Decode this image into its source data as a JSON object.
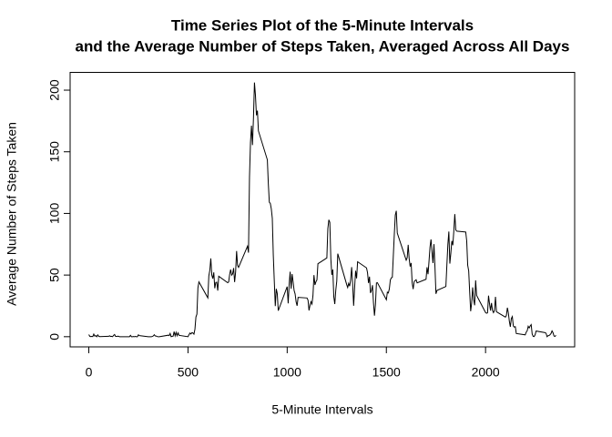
{
  "chart_data": {
    "type": "line",
    "title": [
      "Time Series Plot of the 5-Minute Intervals",
      "and the Average Number of Steps Taken, Averaged Across All Days"
    ],
    "xlabel": "5-Minute Intervals",
    "ylabel": "Average Number of Steps Taken",
    "color": "#000000",
    "xlim": [
      -94.2,
      2449.2
    ],
    "xticks": [
      0,
      500,
      1000,
      1500,
      2000
    ],
    "ylim": [
      -8.25,
      214.42
    ],
    "yticks": [
      0,
      50,
      100,
      150,
      200
    ],
    "x": [
      0,
      5,
      10,
      15,
      20,
      25,
      30,
      35,
      40,
      45,
      50,
      55,
      100,
      105,
      110,
      115,
      120,
      125,
      130,
      135,
      140,
      145,
      150,
      155,
      200,
      205,
      210,
      215,
      220,
      225,
      230,
      235,
      240,
      245,
      250,
      255,
      300,
      305,
      310,
      315,
      320,
      325,
      330,
      335,
      340,
      345,
      350,
      355,
      400,
      405,
      410,
      415,
      420,
      425,
      430,
      435,
      440,
      445,
      450,
      455,
      500,
      505,
      510,
      515,
      520,
      525,
      530,
      535,
      540,
      545,
      550,
      555,
      600,
      605,
      610,
      615,
      620,
      625,
      630,
      635,
      640,
      645,
      650,
      655,
      700,
      705,
      710,
      715,
      720,
      725,
      730,
      735,
      740,
      745,
      750,
      755,
      800,
      805,
      810,
      815,
      820,
      825,
      830,
      835,
      840,
      845,
      850,
      855,
      900,
      905,
      910,
      915,
      920,
      925,
      930,
      935,
      940,
      945,
      950,
      955,
      1000,
      1005,
      1010,
      1015,
      1020,
      1025,
      1030,
      1035,
      1040,
      1045,
      1050,
      1055,
      1100,
      1105,
      1110,
      1115,
      1120,
      1125,
      1130,
      1135,
      1140,
      1145,
      1150,
      1155,
      1200,
      1205,
      1210,
      1215,
      1220,
      1225,
      1230,
      1235,
      1240,
      1245,
      1250,
      1255,
      1300,
      1305,
      1310,
      1315,
      1320,
      1325,
      1330,
      1335,
      1340,
      1345,
      1350,
      1355,
      1400,
      1405,
      1410,
      1415,
      1420,
      1425,
      1430,
      1435,
      1440,
      1445,
      1450,
      1455,
      1500,
      1505,
      1510,
      1515,
      1520,
      1525,
      1530,
      1535,
      1540,
      1545,
      1550,
      1555,
      1600,
      1605,
      1610,
      1615,
      1620,
      1625,
      1630,
      1635,
      1640,
      1645,
      1650,
      1655,
      1700,
      1705,
      1710,
      1715,
      1720,
      1725,
      1730,
      1735,
      1740,
      1745,
      1750,
      1755,
      1800,
      1805,
      1810,
      1815,
      1820,
      1825,
      1830,
      1835,
      1840,
      1845,
      1850,
      1855,
      1900,
      1905,
      1910,
      1915,
      1920,
      1925,
      1930,
      1935,
      1940,
      1945,
      1950,
      1955,
      2000,
      2005,
      2010,
      2015,
      2020,
      2025,
      2030,
      2035,
      2040,
      2045,
      2050,
      2055,
      2100,
      2105,
      2110,
      2115,
      2120,
      2125,
      2130,
      2135,
      2140,
      2145,
      2150,
      2155,
      2200,
      2205,
      2210,
      2215,
      2220,
      2225,
      2230,
      2235,
      2240,
      2245,
      2250,
      2255,
      2300,
      2305,
      2310,
      2315,
      2320,
      2325,
      2330,
      2335,
      2340,
      2345,
      2350,
      2355
    ],
    "values": [
      1.7,
      0.3,
      0.1,
      0.2,
      0.1,
      2.1,
      0.5,
      0.9,
      0,
      1.5,
      0.3,
      0.1,
      0.3,
      0.7,
      0.2,
      0.3,
      0,
      1.1,
      1.8,
      0.2,
      0.2,
      0.4,
      0.3,
      0,
      0,
      0,
      1.1,
      0,
      0,
      0.1,
      0,
      0.2,
      0,
      0,
      1.5,
      0.9,
      0,
      0,
      0,
      0,
      0.2,
      0.6,
      1.6,
      0.6,
      0.5,
      0.1,
      0,
      0,
      1.2,
      0.9,
      2.6,
      0,
      0.3,
      0.4,
      4.1,
      0.7,
      3.5,
      0.8,
      3.1,
      1.1,
      0,
      1.6,
      3,
      2.2,
      3.3,
      3,
      2.1,
      6.1,
      16,
      18.3,
      39.5,
      44.5,
      31.5,
      49.3,
      53.8,
      63.5,
      50,
      47.1,
      52.2,
      39.3,
      44,
      44.2,
      37.4,
      49,
      43.8,
      44.4,
      50.5,
      54.5,
      49.9,
      51,
      55.7,
      44.3,
      52.3,
      69.5,
      57.8,
      56.2,
      73.4,
      68.2,
      129.4,
      157.5,
      171.2,
      155.4,
      177.3,
      206.2,
      195.9,
      179.6,
      183.4,
      167,
      143.5,
      124,
      109.1,
      108.1,
      103.7,
      96,
      66.2,
      45.2,
      24.8,
      38.8,
      35,
      21.1,
      40.6,
      27,
      42.4,
      52.7,
      38.9,
      50.8,
      44.3,
      37.4,
      34.7,
      28.3,
      25.1,
      31.9,
      31.4,
      29.7,
      21.3,
      25.5,
      28.4,
      26.5,
      33.4,
      50,
      42,
      44.6,
      46,
      59.2,
      63.9,
      87.7,
      94.8,
      92.8,
      63.4,
      50.2,
      54.5,
      32.4,
      26.5,
      37.7,
      45.1,
      67.3,
      42.3,
      39.9,
      43.3,
      41,
      46.2,
      56.4,
      42.8,
      25.1,
      40,
      53.5,
      47.3,
      60.8,
      55.8,
      52,
      43.6,
      48.7,
      35.5,
      37.5,
      41.8,
      27.5,
      17.1,
      26.1,
      43.6,
      43.8,
      30,
      36.1,
      35.5,
      38.8,
      46,
      47.8,
      48.1,
      65.3,
      82.9,
      98.7,
      102.1,
      84,
      62.1,
      64.1,
      74.5,
      63.2,
      56.9,
      59.8,
      43.9,
      38.6,
      44.7,
      45.5,
      46.2,
      43.7,
      46.6,
      56.3,
      50.7,
      61.2,
      72.7,
      78.9,
      68.9,
      59.7,
      75.1,
      56.5,
      34.8,
      37.5,
      40.7,
      58,
      74.7,
      85.3,
      59.3,
      67.8,
      77.7,
      74.2,
      85.6,
      99.5,
      86.6,
      85.6,
      84.9,
      77.8,
      58,
      53.4,
      36.3,
      20.7,
      27.4,
      40,
      30.2,
      25.5,
      45.7,
      33.5,
      19.6,
      19,
      19.3,
      33.3,
      26.8,
      21.2,
      27.3,
      21.3,
      19.5,
      21.3,
      32.3,
      20.2,
      15.9,
      17.2,
      23.5,
      19.2,
      12.5,
      8,
      14.7,
      16.3,
      8.7,
      7.8,
      8.1,
      2.6,
      1.5,
      3.7,
      4.8,
      8.5,
      7.1,
      8.7,
      9.8,
      2.2,
      0.3,
      0.1,
      1.6,
      4.6,
      3.3,
      2.8,
      0,
      0.8,
      1,
      1.6,
      2.6,
      4.7,
      3.3,
      0.6,
      0.2,
      1.1
    ]
  }
}
